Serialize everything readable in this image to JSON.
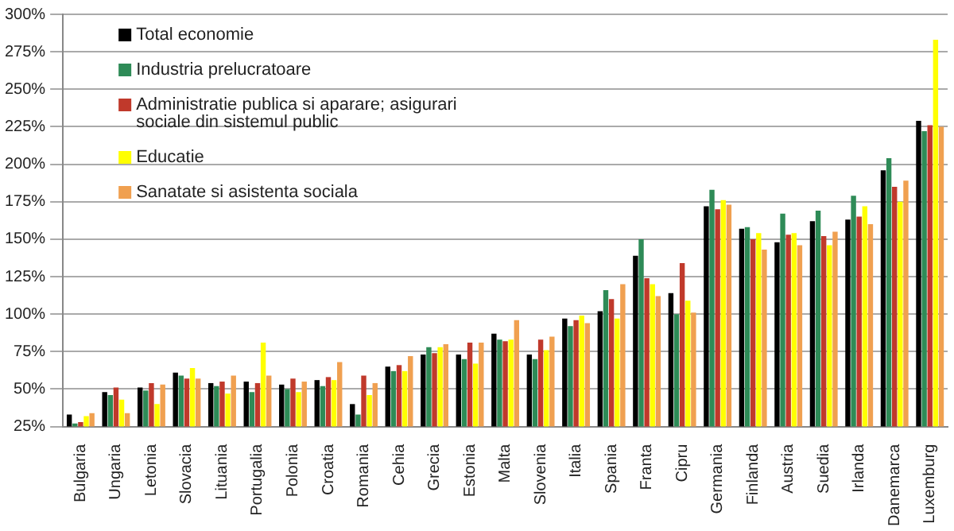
{
  "chart_data": {
    "type": "bar",
    "categories": [
      "Bulgaria",
      "Ungaria",
      "Letonia",
      "Slovacia",
      "Lituania",
      "Portugalia",
      "Polonia",
      "Croatia",
      "Romania",
      "Cehia",
      "Grecia",
      "Estonia",
      "Malta",
      "Slovenia",
      "Italia",
      "Spania",
      "Franta",
      "Cipru",
      "Germania",
      "Finlanda",
      "Austria",
      "Suedia",
      "Irlanda",
      "Danemarca",
      "Luxemburg"
    ],
    "series": [
      {
        "name": "Total economie",
        "color": "#000000",
        "values": [
          33,
          48,
          51,
          61,
          54,
          55,
          53,
          56,
          40,
          65,
          73,
          73,
          87,
          73,
          97,
          102,
          139,
          114,
          172,
          157,
          148,
          162,
          163,
          196,
          229
        ]
      },
      {
        "name": "Industria prelucratoare",
        "color": "#2e8b57",
        "values": [
          27,
          46,
          49,
          59,
          52,
          48,
          50,
          52,
          33,
          62,
          78,
          70,
          83,
          70,
          92,
          116,
          150,
          100,
          183,
          158,
          167,
          169,
          179,
          204,
          222
        ]
      },
      {
        "name": "Administratie publica si aparare; asigurari sociale din sistemul public",
        "color": "#c0392b",
        "values": [
          28,
          51,
          54,
          57,
          55,
          54,
          57,
          58,
          59,
          66,
          74,
          81,
          82,
          83,
          96,
          110,
          124,
          134,
          170,
          150,
          153,
          152,
          165,
          185,
          226
        ]
      },
      {
        "name": "Educatie",
        "color": "#ffff00",
        "values": [
          32,
          43,
          40,
          64,
          47,
          81,
          48,
          56,
          46,
          62,
          78,
          67,
          83,
          76,
          99,
          97,
          120,
          109,
          176,
          154,
          154,
          146,
          172,
          175,
          283
        ]
      },
      {
        "name": "Sanatate si asistenta sociala",
        "color": "#f0a050",
        "values": [
          34,
          34,
          53,
          57,
          59,
          59,
          55,
          68,
          54,
          72,
          80,
          81,
          96,
          85,
          94,
          120,
          112,
          101,
          173,
          143,
          146,
          155,
          160,
          189,
          225
        ]
      }
    ],
    "ylim": [
      25,
      300
    ],
    "yticks": [
      {
        "value": 25,
        "label": "25%"
      },
      {
        "value": 50,
        "label": "50%"
      },
      {
        "value": 75,
        "label": "75%"
      },
      {
        "value": 100,
        "label": "100%"
      },
      {
        "value": 125,
        "label": "125%"
      },
      {
        "value": 150,
        "label": "150%"
      },
      {
        "value": 175,
        "label": "175%"
      },
      {
        "value": 200,
        "label": "200%"
      },
      {
        "value": 225,
        "label": "225%"
      },
      {
        "value": 250,
        "label": "250%"
      },
      {
        "value": 275,
        "label": "275%"
      },
      {
        "value": 300,
        "label": "300%"
      }
    ],
    "grid": "y",
    "legend": "top left"
  }
}
